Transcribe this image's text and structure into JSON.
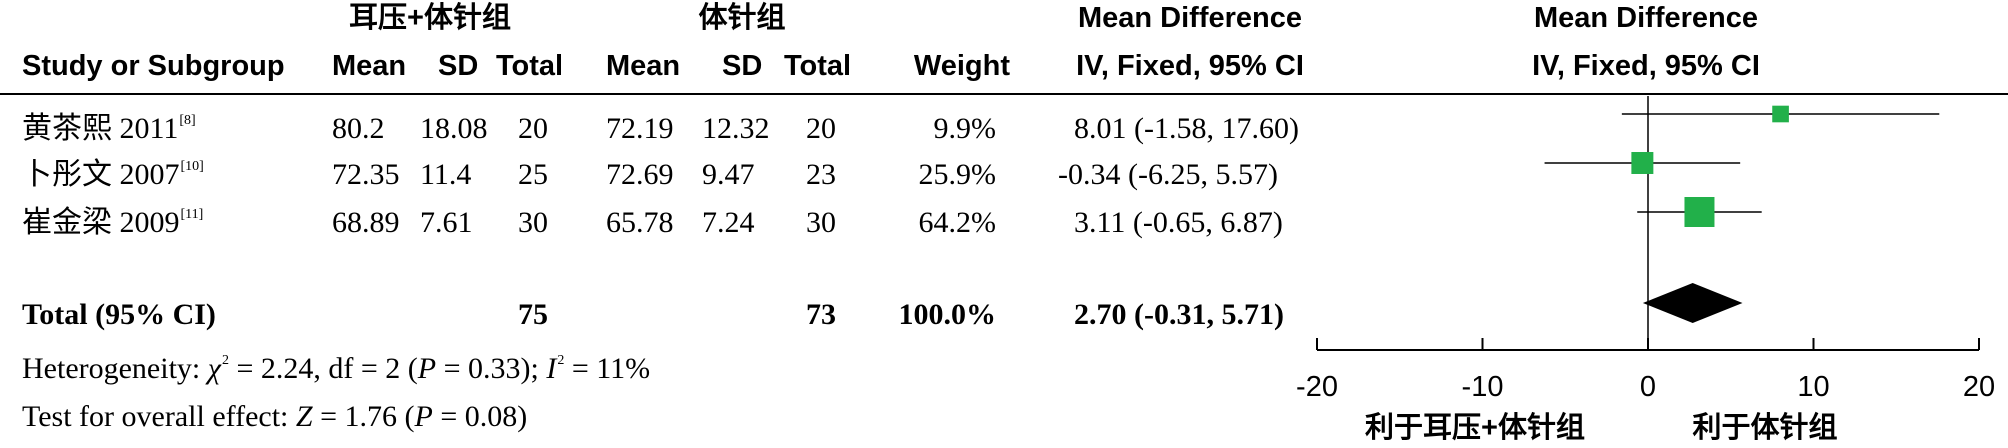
{
  "header": {
    "group1_name": "耳压+体针组",
    "group2_name": "体针组",
    "md_title_left": "Mean Difference",
    "md_method_left": "IV, Fixed, 95% CI",
    "md_title_right": "Mean Difference",
    "md_method_right": "IV, Fixed, 95% CI",
    "columns": {
      "study": "Study or Subgroup",
      "mean1": "Mean",
      "sd1": "SD",
      "total1": "Total",
      "mean2": "Mean",
      "sd2": "SD",
      "total2": "Total",
      "weight": "Weight"
    }
  },
  "studies": [
    {
      "name": "黄茶熙 2011",
      "ref": "[8]",
      "mean1": "80.2",
      "sd1": "18.08",
      "total1": "20",
      "mean2": "72.19",
      "sd2": "12.32",
      "total2": "20",
      "weight": "9.9%",
      "ci_text": "8.01 (-1.58, 17.60)"
    },
    {
      "name": "卜彤文 2007",
      "ref": "[10]",
      "mean1": "72.35",
      "sd1": "11.4",
      "total1": "25",
      "mean2": "72.69",
      "sd2": "9.47",
      "total2": "23",
      "weight": "25.9%",
      "ci_text": "-0.34 (-6.25, 5.57)"
    },
    {
      "name": "崔金梁 2009",
      "ref": "[11]",
      "mean1": "68.89",
      "sd1": "7.61",
      "total1": "30",
      "mean2": "65.78",
      "sd2": "7.24",
      "total2": "30",
      "weight": "64.2%",
      "ci_text": "3.11 (-0.65, 6.87)"
    }
  ],
  "total": {
    "label": "Total (95% CI)",
    "total1": "75",
    "total2": "73",
    "weight": "100.0%",
    "ci_text": "2.70 (-0.31, 5.71)"
  },
  "heterogeneity": {
    "prefix": "Heterogeneity: ",
    "chi_symbol": "χ",
    "chi_value": " = 2.24, df = 2 (",
    "p_symbol": "P",
    "p_value": " = 0.33); ",
    "i_symbol": "I",
    "i_value": " = 11%"
  },
  "overall": {
    "prefix": "Test for overall effect: ",
    "z_symbol": "Z",
    "z_value": " = 1.76 (",
    "p_symbol": "P",
    "p_value": " = 0.08)"
  },
  "axis": {
    "favours_left": "利于耳压+体针组",
    "favours_right": "利于体针组"
  },
  "colors": {
    "study_marker": "#22b04a",
    "summary_diamond": "#000000",
    "lines": "#000000"
  },
  "chart_data": {
    "type": "forest",
    "x_axis": {
      "min": -20,
      "max": 20,
      "ticks": [
        -20,
        -10,
        0,
        10,
        20
      ]
    },
    "studies": [
      {
        "name": "黄茶熙 2011",
        "estimate": 8.01,
        "ci_low": -1.58,
        "ci_high": 17.6,
        "weight": 9.9
      },
      {
        "name": "卜彤文 2007",
        "estimate": -0.34,
        "ci_low": -6.25,
        "ci_high": 5.57,
        "weight": 25.9
      },
      {
        "name": "崔金梁 2009",
        "estimate": 3.11,
        "ci_low": -0.65,
        "ci_high": 6.87,
        "weight": 64.2
      }
    ],
    "summary": {
      "estimate": 2.7,
      "ci_low": -0.31,
      "ci_high": 5.71
    }
  }
}
